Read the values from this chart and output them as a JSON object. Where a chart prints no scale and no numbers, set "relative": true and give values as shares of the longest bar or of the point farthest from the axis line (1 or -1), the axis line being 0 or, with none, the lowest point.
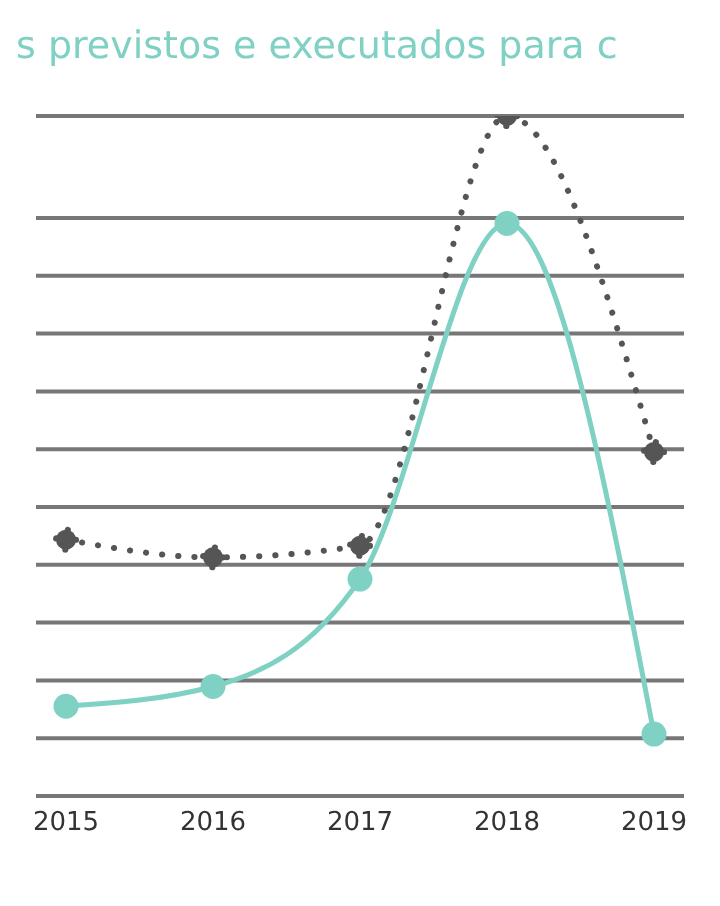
{
  "chart_data": {
    "type": "line",
    "title": "s previstos e executados para c",
    "categories": [
      "2015",
      "2016",
      "2017",
      "2018",
      "2019"
    ],
    "relative": true,
    "grid": "y",
    "marker": "circle",
    "series": [
      {
        "color": "#555555",
        "line_style": "dotted",
        "values": [
          0.377,
          0.351,
          0.368,
          1,
          0.506
        ]
      },
      {
        "color": "#7fd1c3",
        "line_style": "solid",
        "values": [
          0.132,
          0.161,
          0.319,
          0.842,
          0.091
        ]
      }
    ]
  }
}
